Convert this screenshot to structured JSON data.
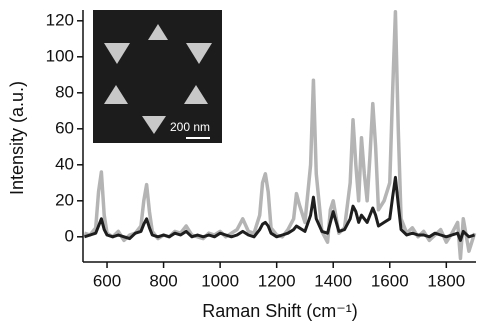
{
  "chart_data": {
    "type": "line",
    "x_label": "Raman Shift (cm⁻¹)",
    "y_label": "Intensity (a.u.)",
    "annotations": [
      "200 nm"
    ],
    "xlim": [
      515,
      1905
    ],
    "ylim": [
      -14,
      126
    ],
    "xticks": [
      600,
      800,
      1000,
      1200,
      1400,
      1600,
      1800
    ],
    "yticks": [
      0,
      20,
      40,
      60,
      80,
      100,
      120
    ],
    "grid": false,
    "x": [
      520,
      540,
      560,
      570,
      580,
      590,
      600,
      620,
      640,
      660,
      680,
      700,
      720,
      730,
      740,
      750,
      760,
      780,
      800,
      820,
      840,
      860,
      880,
      900,
      920,
      940,
      960,
      980,
      1000,
      1020,
      1040,
      1060,
      1080,
      1100,
      1120,
      1140,
      1150,
      1160,
      1170,
      1180,
      1200,
      1220,
      1240,
      1260,
      1270,
      1280,
      1300,
      1320,
      1330,
      1340,
      1360,
      1380,
      1390,
      1400,
      1420,
      1440,
      1460,
      1470,
      1480,
      1490,
      1500,
      1510,
      1520,
      1530,
      1540,
      1550,
      1560,
      1580,
      1600,
      1610,
      1620,
      1630,
      1640,
      1660,
      1680,
      1700,
      1720,
      1740,
      1760,
      1780,
      1800,
      1820,
      1840,
      1850,
      1860,
      1880,
      1900
    ],
    "series": [
      {
        "color": "#b4b4b4",
        "width": 3.5,
        "values": [
          2,
          1,
          5,
          25,
          36,
          12,
          2,
          0,
          3,
          -2,
          1,
          2,
          6,
          20,
          29,
          14,
          3,
          -1,
          1,
          0,
          3,
          2,
          6,
          1,
          0,
          -1,
          2,
          1,
          3,
          0,
          2,
          4,
          10,
          3,
          2,
          12,
          30,
          35,
          25,
          5,
          1,
          0,
          4,
          10,
          24,
          18,
          8,
          40,
          87,
          35,
          3,
          -3,
          15,
          20,
          2,
          5,
          30,
          65,
          40,
          20,
          55,
          35,
          20,
          45,
          74,
          50,
          15,
          20,
          30,
          80,
          125,
          60,
          10,
          2,
          5,
          0,
          3,
          -2,
          1,
          4,
          -3,
          2,
          8,
          -12,
          10,
          -8,
          2
        ]
      },
      {
        "color": "#1e1e1e",
        "width": 3,
        "values": [
          0,
          1,
          2,
          6,
          10,
          4,
          1,
          0,
          1,
          0,
          -1,
          2,
          3,
          7,
          10,
          5,
          1,
          0,
          1,
          0,
          2,
          1,
          3,
          0,
          1,
          0,
          1,
          0,
          2,
          1,
          0,
          1,
          3,
          1,
          0,
          4,
          7,
          8,
          6,
          2,
          0,
          1,
          2,
          4,
          6,
          5,
          3,
          12,
          22,
          10,
          3,
          2,
          8,
          14,
          3,
          4,
          10,
          17,
          14,
          8,
          12,
          10,
          8,
          12,
          16,
          12,
          6,
          8,
          10,
          22,
          33,
          18,
          4,
          1,
          2,
          1,
          1,
          0,
          2,
          1,
          0,
          1,
          2,
          -2,
          3,
          0,
          1
        ]
      }
    ]
  }
}
